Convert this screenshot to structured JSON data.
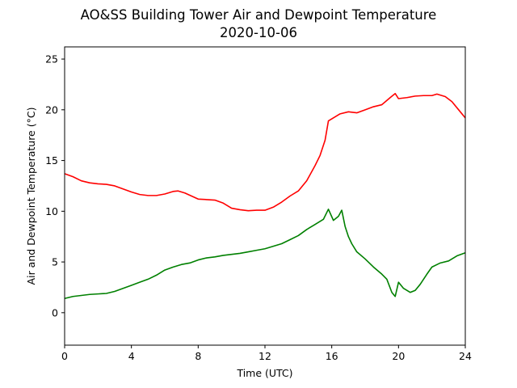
{
  "chart_data": {
    "type": "line",
    "title": "AO&SS Building Tower Air and Dewpoint Temperature",
    "subtitle": "2020-10-06",
    "xlabel": "Time (UTC)",
    "ylabel": "Air and Dewpoint Temperature (°C)",
    "xlim": [
      0,
      24
    ],
    "ylim": [
      -3.2,
      26.2
    ],
    "x_ticks": [
      0,
      4,
      8,
      12,
      16,
      20,
      24
    ],
    "y_ticks": [
      0,
      5,
      10,
      15,
      20,
      25
    ],
    "grid": false,
    "legend": "none",
    "series": [
      {
        "color": "#ff0000",
        "points": [
          [
            0,
            13.7
          ],
          [
            0.5,
            13.4
          ],
          [
            1,
            13.0
          ],
          [
            1.5,
            12.8
          ],
          [
            2,
            12.7
          ],
          [
            2.5,
            12.65
          ],
          [
            3,
            12.5
          ],
          [
            3.5,
            12.2
          ],
          [
            4,
            11.9
          ],
          [
            4.5,
            11.65
          ],
          [
            5,
            11.55
          ],
          [
            5.5,
            11.55
          ],
          [
            6,
            11.7
          ],
          [
            6.5,
            11.95
          ],
          [
            6.8,
            12.0
          ],
          [
            7.2,
            11.8
          ],
          [
            7.6,
            11.5
          ],
          [
            8,
            11.2
          ],
          [
            8.5,
            11.15
          ],
          [
            9,
            11.1
          ],
          [
            9.5,
            10.8
          ],
          [
            10,
            10.3
          ],
          [
            10.5,
            10.15
          ],
          [
            11,
            10.05
          ],
          [
            11.5,
            10.1
          ],
          [
            12,
            10.1
          ],
          [
            12.5,
            10.4
          ],
          [
            13,
            10.9
          ],
          [
            13.5,
            11.5
          ],
          [
            14,
            12.0
          ],
          [
            14.5,
            13.0
          ],
          [
            15,
            14.5
          ],
          [
            15.3,
            15.5
          ],
          [
            15.6,
            17.0
          ],
          [
            15.8,
            18.9
          ],
          [
            16,
            19.1
          ],
          [
            16.5,
            19.6
          ],
          [
            17,
            19.8
          ],
          [
            17.5,
            19.7
          ],
          [
            18,
            20.0
          ],
          [
            18.5,
            20.3
          ],
          [
            19,
            20.5
          ],
          [
            19.5,
            21.2
          ],
          [
            19.8,
            21.6
          ],
          [
            20,
            21.1
          ],
          [
            20.5,
            21.2
          ],
          [
            21,
            21.35
          ],
          [
            21.5,
            21.4
          ],
          [
            22,
            21.4
          ],
          [
            22.3,
            21.55
          ],
          [
            22.8,
            21.3
          ],
          [
            23.2,
            20.8
          ],
          [
            23.6,
            20.0
          ],
          [
            24,
            19.2
          ]
        ]
      },
      {
        "color": "#008000",
        "points": [
          [
            0,
            1.4
          ],
          [
            0.5,
            1.6
          ],
          [
            1,
            1.7
          ],
          [
            1.5,
            1.8
          ],
          [
            2,
            1.85
          ],
          [
            2.5,
            1.9
          ],
          [
            3,
            2.1
          ],
          [
            3.5,
            2.4
          ],
          [
            4,
            2.7
          ],
          [
            4.5,
            3.0
          ],
          [
            5,
            3.3
          ],
          [
            5.5,
            3.7
          ],
          [
            6,
            4.2
          ],
          [
            6.5,
            4.5
          ],
          [
            7,
            4.75
          ],
          [
            7.5,
            4.9
          ],
          [
            8,
            5.2
          ],
          [
            8.5,
            5.4
          ],
          [
            9,
            5.5
          ],
          [
            9.5,
            5.65
          ],
          [
            10,
            5.75
          ],
          [
            10.5,
            5.85
          ],
          [
            11,
            6.0
          ],
          [
            11.5,
            6.15
          ],
          [
            12,
            6.3
          ],
          [
            12.5,
            6.55
          ],
          [
            13,
            6.8
          ],
          [
            13.5,
            7.2
          ],
          [
            14,
            7.6
          ],
          [
            14.5,
            8.2
          ],
          [
            15,
            8.7
          ],
          [
            15.5,
            9.2
          ],
          [
            15.8,
            10.2
          ],
          [
            16.1,
            9.1
          ],
          [
            16.4,
            9.5
          ],
          [
            16.6,
            10.1
          ],
          [
            16.8,
            8.5
          ],
          [
            17,
            7.5
          ],
          [
            17.2,
            6.8
          ],
          [
            17.5,
            6.0
          ],
          [
            18,
            5.3
          ],
          [
            18.5,
            4.5
          ],
          [
            19,
            3.8
          ],
          [
            19.3,
            3.3
          ],
          [
            19.6,
            2.0
          ],
          [
            19.8,
            1.6
          ],
          [
            20,
            3.0
          ],
          [
            20.3,
            2.4
          ],
          [
            20.7,
            2.0
          ],
          [
            21,
            2.2
          ],
          [
            21.3,
            2.8
          ],
          [
            21.7,
            3.8
          ],
          [
            22,
            4.5
          ],
          [
            22.5,
            4.9
          ],
          [
            23,
            5.1
          ],
          [
            23.5,
            5.6
          ],
          [
            24,
            5.9
          ]
        ]
      }
    ]
  }
}
